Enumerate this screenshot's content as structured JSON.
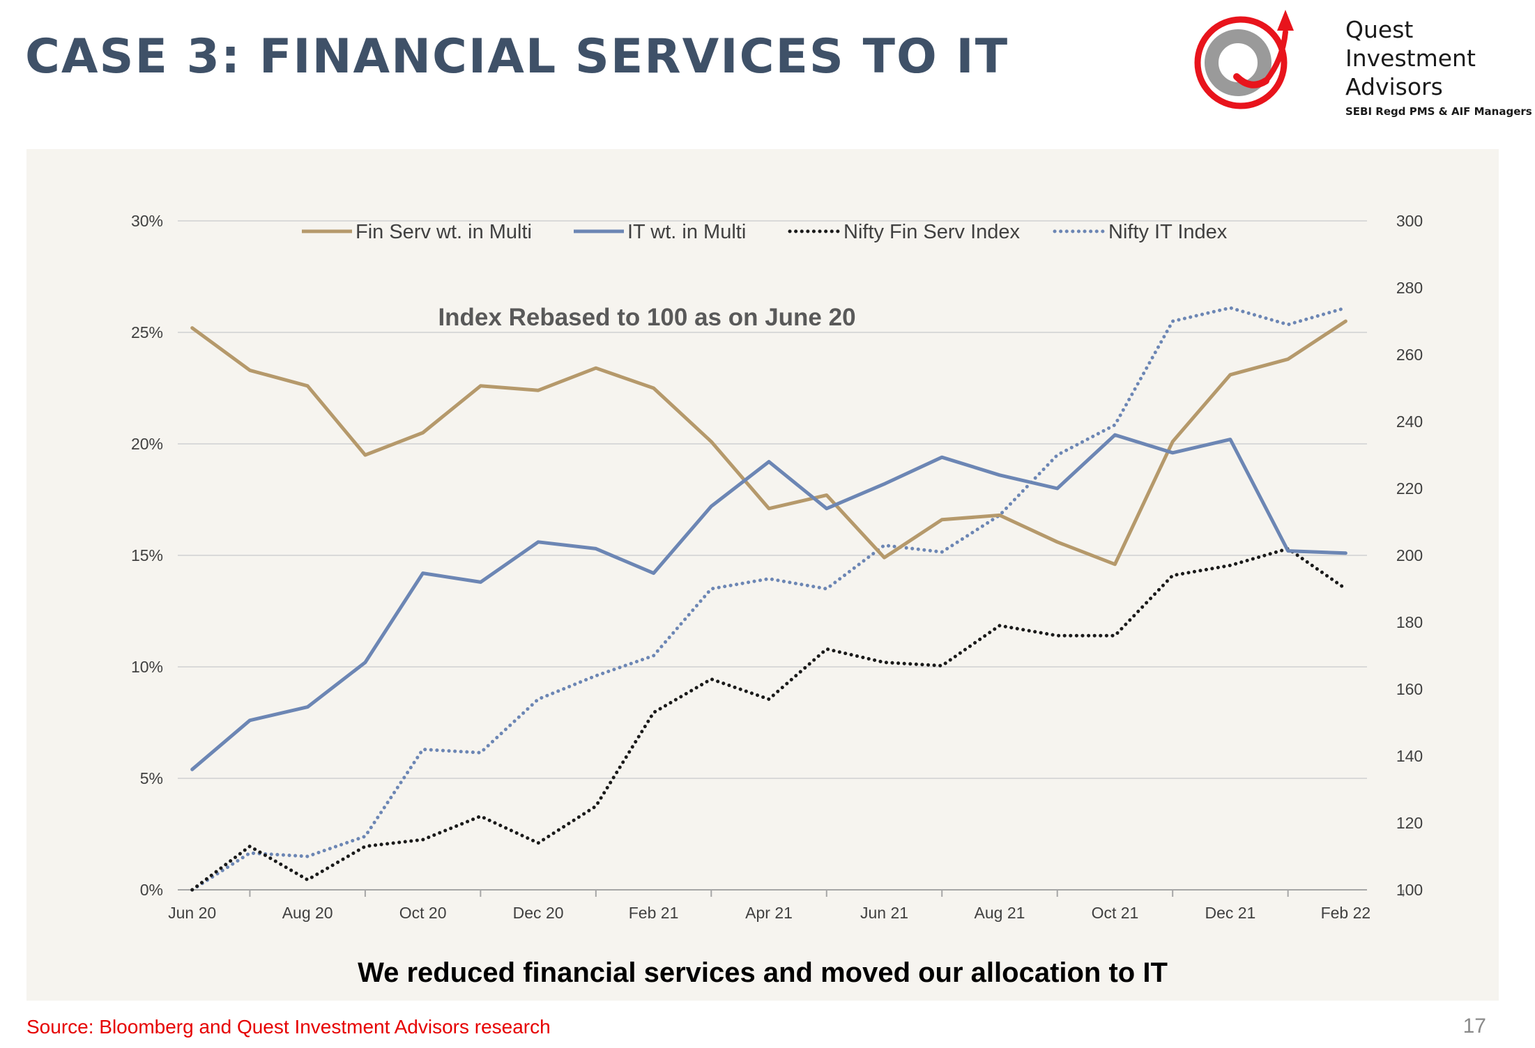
{
  "slide": {
    "title": "CASE 3: FINANCIAL SERVICES TO IT",
    "conclusion": "We reduced financial services and moved our allocation to IT",
    "source": "Source: Bloomberg and Quest Investment Advisors research",
    "page_number": "17"
  },
  "logo": {
    "line1": "Quest",
    "line2": "Investment",
    "line3": "Advisors",
    "tagline": "SEBI Regd PMS & AIF Managers",
    "colors": {
      "ring": "#e8141c",
      "q": "#9a9a9a"
    }
  },
  "chart_data": {
    "type": "line",
    "annotation": "Index Rebased to 100 as on June 20",
    "x": [
      "Jun 20",
      "Jul 20",
      "Aug 20",
      "Sep 20",
      "Oct 20",
      "Nov 20",
      "Dec 20",
      "Jan 21",
      "Feb 21",
      "Mar 21",
      "Apr 21",
      "May 21",
      "Jun 21",
      "Jul 21",
      "Aug 21",
      "Sep 21",
      "Oct 21",
      "Nov 21",
      "Dec 21",
      "Jan 22",
      "Feb 22"
    ],
    "x_tick_labels": [
      "Jun 20",
      "Aug 20",
      "Oct 20",
      "Dec 20",
      "Feb 21",
      "Apr 21",
      "Jun 21",
      "Aug 21",
      "Oct 21",
      "Dec 21",
      "Feb 22"
    ],
    "y_left": {
      "ticks": [
        "0%",
        "5%",
        "10%",
        "15%",
        "20%",
        "25%",
        "30%"
      ],
      "range": [
        0,
        30
      ]
    },
    "y_right": {
      "ticks": [
        "100",
        "120",
        "140",
        "160",
        "180",
        "200",
        "220",
        "240",
        "260",
        "280",
        "300"
      ],
      "range": [
        100,
        300
      ]
    },
    "grid": "horizontal",
    "legend_position": "top",
    "series": [
      {
        "name": "Fin Serv wt. in Multi",
        "axis": "left",
        "style": "solid",
        "color": "#b5996b",
        "values": [
          25.2,
          23.3,
          22.6,
          19.5,
          20.5,
          22.6,
          22.4,
          23.4,
          22.5,
          20.1,
          17.1,
          17.7,
          14.9,
          16.6,
          16.8,
          15.6,
          14.6,
          20.1,
          23.1,
          23.8,
          25.5
        ]
      },
      {
        "name": "IT wt. in Multi",
        "axis": "left",
        "style": "solid",
        "color": "#6c86b4",
        "values": [
          5.4,
          7.6,
          8.2,
          10.2,
          14.2,
          13.8,
          15.6,
          15.3,
          14.2,
          17.2,
          19.2,
          17.1,
          18.2,
          19.4,
          18.6,
          18.0,
          20.4,
          19.6,
          20.2,
          15.2,
          15.1
        ]
      },
      {
        "name": "Nifty Fin Serv Index",
        "axis": "right",
        "style": "dotted",
        "color": "#1a1a1a",
        "values": [
          100,
          113,
          103,
          113,
          115,
          122,
          114,
          125,
          153,
          163,
          157,
          172,
          168,
          167,
          179,
          176,
          176,
          194,
          197,
          202,
          190
        ]
      },
      {
        "name": "Nifty IT Index",
        "axis": "right",
        "style": "dotted",
        "color": "#6c86b4",
        "values": [
          100,
          111,
          110,
          116,
          142,
          141,
          157,
          164,
          170,
          190,
          193,
          190,
          203,
          201,
          212,
          230,
          239,
          270,
          274,
          269,
          274
        ]
      }
    ]
  }
}
